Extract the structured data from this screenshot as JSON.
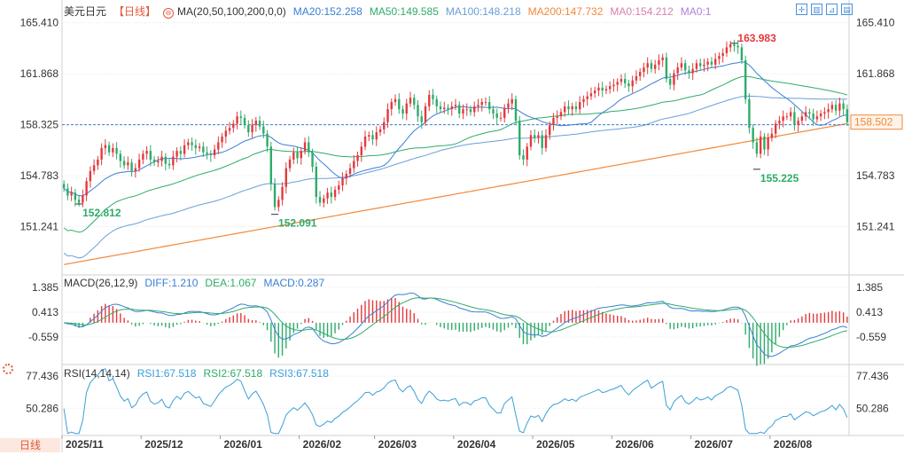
{
  "instrument": "美元日元",
  "period_label": "【日线】",
  "period_button": "日线",
  "colors": {
    "up": "#e4393c",
    "down": "#2eab6a",
    "ma20": "#3a7fd5",
    "ma50": "#2eab6a",
    "ma100": "#6a9fd8",
    "ma200": "#f08a3c",
    "ma0": "#d87fb0",
    "price_line": "#3a7fd5",
    "annotation_high": "#e4393c",
    "annotation_low": "#2eab6a",
    "grid": "#e6e6e6",
    "dif": "#3a7fd5",
    "dea": "#2eab6a",
    "rsi": "#3a9fd8"
  },
  "legends": {
    "main": {
      "ma_params": "MA(20,50,100,200,0,0)",
      "ma20": "MA20:152.258",
      "ma50": "MA50:149.585",
      "ma100": "MA100:148.218",
      "ma200": "MA200:147.732",
      "ma0a": "MA0:154.212",
      "ma0b": "MA0:1"
    },
    "macd": {
      "title": "MACD(26,12,9)",
      "dif": "DIFF:1.210",
      "dea": "DEA:1.067",
      "macd": "MACD:0.287"
    },
    "rsi": {
      "title": "RSI(14,14,14)",
      "rsi1": "RSI1:67.518",
      "rsi2": "RSI2:67.518",
      "rsi3": "RSI3:67.518"
    }
  },
  "toolbar_icons": [
    "crosshair-icon",
    "indicator-icon",
    "draw-icon",
    "panel-icon"
  ],
  "chart_data": [
    {
      "type": "candlestick",
      "name": "price",
      "yticks": [
        "165.410",
        "161.868",
        "158.325",
        "154.783",
        "151.241"
      ],
      "ylim": [
        148.0,
        166.5
      ],
      "xticks": [
        "2025/11",
        "2025/12",
        "2026/01",
        "2026/02",
        "2026/03",
        "2026/04",
        "2026/05",
        "2026/06",
        "2026/07",
        "2026/08"
      ],
      "current_price": "158.502",
      "current_value": 158.502,
      "reference_line": 158.325,
      "annotations": [
        {
          "text": "163.983",
          "value": 163.983,
          "kind": "high",
          "index": 178
        },
        {
          "text": "152.812",
          "value": 152.812,
          "kind": "low",
          "index": 4
        },
        {
          "text": "152.091",
          "value": 152.091,
          "kind": "low",
          "index": 56
        },
        {
          "text": "155.225",
          "value": 155.225,
          "kind": "low",
          "index": 184
        }
      ],
      "closes": [
        153.9,
        153.4,
        153.6,
        153.1,
        152.9,
        153.4,
        154.4,
        155.1,
        155.5,
        155.9,
        156.7,
        156.9,
        156.4,
        156.7,
        156.3,
        155.8,
        155.5,
        155.7,
        155.1,
        155.3,
        155.9,
        156.3,
        156.5,
        155.9,
        155.7,
        155.8,
        156.1,
        155.6,
        155.5,
        156.1,
        156.5,
        156.3,
        156.9,
        157.1,
        156.9,
        156.7,
        156.8,
        156.4,
        156.3,
        156.2,
        156.6,
        157.1,
        157.5,
        157.9,
        158.1,
        158.4,
        158.9,
        158.8,
        158.3,
        157.8,
        158.3,
        158.6,
        158.2,
        157.7,
        156.8,
        154.2,
        152.6,
        153.1,
        154.0,
        155.3,
        155.9,
        156.4,
        156.0,
        156.5,
        157.1,
        156.4,
        155.4,
        153.3,
        152.9,
        153.2,
        153.6,
        153.3,
        153.8,
        154.1,
        154.6,
        154.9,
        155.3,
        155.8,
        156.2,
        156.8,
        157.5,
        157.6,
        157.3,
        157.8,
        158.0,
        158.5,
        159.4,
        159.9,
        160.1,
        159.4,
        159.1,
        159.8,
        160.2,
        159.7,
        158.9,
        158.5,
        159.6,
        160.4,
        160.1,
        159.6,
        159.4,
        159.5,
        159.4,
        159.6,
        159.7,
        159.1,
        159.4,
        159.4,
        159.2,
        159.6,
        159.7,
        159.9,
        159.9,
        159.4,
        159.1,
        158.8,
        158.8,
        159.5,
        159.8,
        160.1,
        158.6,
        156.2,
        155.9,
        156.8,
        157.6,
        157.4,
        157.6,
        156.7,
        157.6,
        158.3,
        158.8,
        158.9,
        159.2,
        159.6,
        159.4,
        159.6,
        159.4,
        159.9,
        160.1,
        160.3,
        160.5,
        160.7,
        160.9,
        160.7,
        160.8,
        161.0,
        161.1,
        161.3,
        161.5,
        161.2,
        161.0,
        161.4,
        161.7,
        162.0,
        162.3,
        162.6,
        162.2,
        162.5,
        162.8,
        163.0,
        161.5,
        161.1,
        161.9,
        162.3,
        162.6,
        162.1,
        161.9,
        162.2,
        162.6,
        162.4,
        162.5,
        162.7,
        162.5,
        162.9,
        163.1,
        163.3,
        163.7,
        163.9,
        163.8,
        163.7,
        162.8,
        160.1,
        158.1,
        157.1,
        156.3,
        157.5,
        156.6,
        157.4,
        157.7,
        158.4,
        158.6,
        158.9,
        158.9,
        159.2,
        158.3,
        158.6,
        158.9,
        159.2,
        159.1,
        158.7,
        158.9,
        159.1,
        159.2,
        159.4,
        159.7,
        159.3,
        159.8,
        159.4,
        158.5
      ]
    },
    {
      "type": "macd",
      "name": "MACD(26,12,9)",
      "yticks": [
        "1.385",
        "0.413",
        "-0.559"
      ],
      "ylim": [
        -1.6,
        1.8
      ]
    },
    {
      "type": "line",
      "name": "RSI(14,14,14)",
      "yticks": [
        "77.436",
        "50.286"
      ],
      "ylim": [
        28,
        85
      ]
    }
  ]
}
